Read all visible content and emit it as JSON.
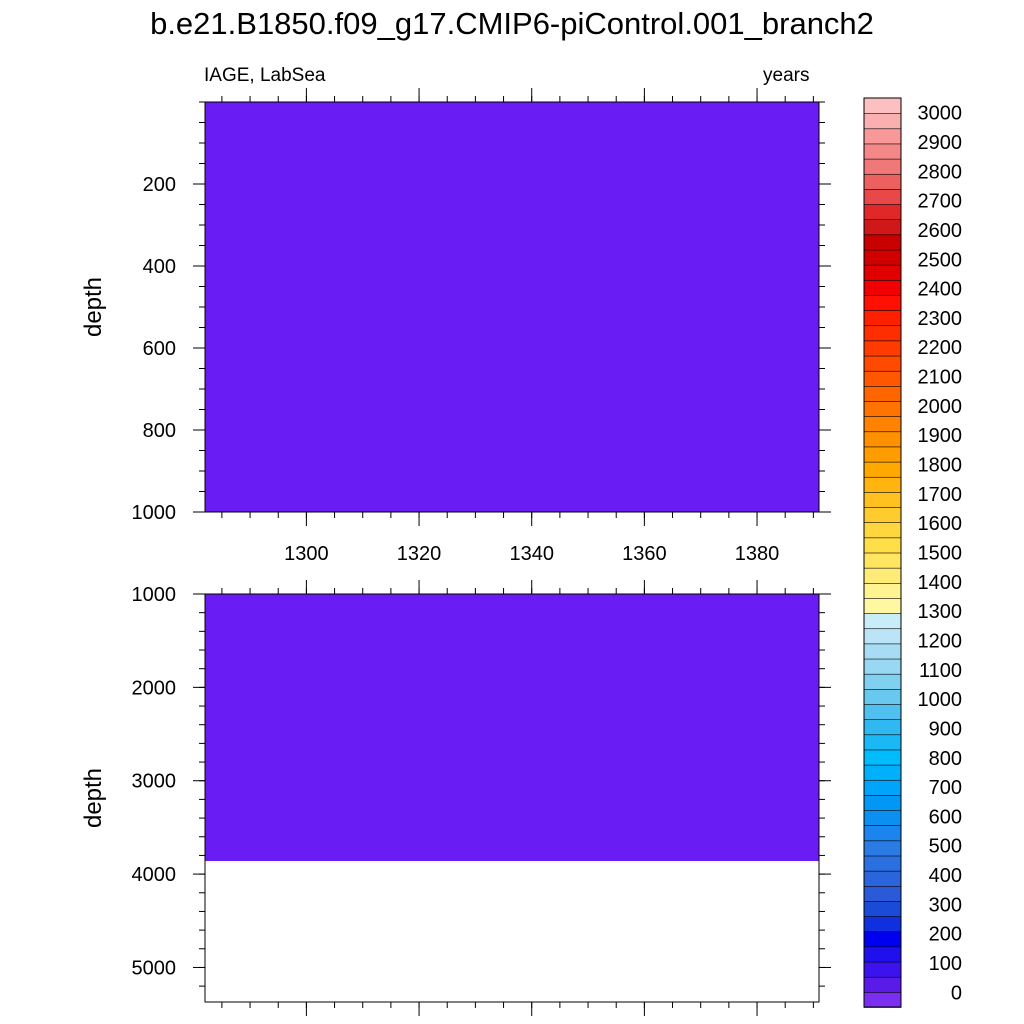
{
  "chart_data": {
    "type": "heatmap",
    "title": "b.e21.B1850.f09_g17.CMIP6-piControl.001_branch2",
    "left_label": "IAGE, LabSea",
    "right_label": "years",
    "xlabel": "",
    "x_ticks": [
      1300,
      1320,
      1340,
      1360,
      1380
    ],
    "xlim": [
      1282,
      1391
    ],
    "fill_color": "#6a1cf4",
    "panels": [
      {
        "name": "upper",
        "ylabel": "depth",
        "ylim": [
          0,
          1000
        ],
        "y_ticks": [
          200,
          400,
          600,
          800,
          1000
        ],
        "y_minor_step": 50,
        "y_reversed": true,
        "field_value_years": 50,
        "field_depth_range": [
          0,
          1000
        ]
      },
      {
        "name": "lower",
        "ylabel": "depth",
        "ylim": [
          1000,
          5370
        ],
        "y_ticks": [
          1000,
          2000,
          3000,
          4000,
          5000
        ],
        "y_minor_step": 200,
        "y_reversed": true,
        "field_value_years": 50,
        "field_depth_range": [
          1000,
          3860
        ]
      }
    ],
    "colorbar": {
      "labels": [
        0,
        100,
        200,
        300,
        400,
        500,
        600,
        700,
        800,
        900,
        1000,
        1100,
        1200,
        1300,
        1400,
        1500,
        1600,
        1700,
        1800,
        1900,
        2000,
        2100,
        2200,
        2300,
        2400,
        2500,
        2600,
        2700,
        2800,
        2900,
        3000
      ],
      "colors": [
        "#7a2ff0",
        "#5a1ae8",
        "#3c12ee",
        "#2010ee",
        "#0000f0",
        "#1030e0",
        "#1a4ad8",
        "#2a5ad8",
        "#2a65dc",
        "#2a70e0",
        "#2a7ce4",
        "#1a85ec",
        "#0a90f0",
        "#0098f4",
        "#00a4f8",
        "#00b0fa",
        "#00bcfc",
        "#1ab8f4",
        "#30b8f0",
        "#50c0f0",
        "#68c8ee",
        "#80d0f0",
        "#98d8f2",
        "#a8dcf4",
        "#bce4f8",
        "#c8ecf8",
        "#fff8a0",
        "#fff290",
        "#ffec78",
        "#ffe560",
        "#ffde48",
        "#ffd640",
        "#ffcc30",
        "#ffc020",
        "#ffb410",
        "#ffa800",
        "#ff9c00",
        "#ff9000",
        "#ff8200",
        "#ff7400",
        "#ff6600",
        "#ff5800",
        "#ff4a00",
        "#ff3c00",
        "#ff2e00",
        "#ff2000",
        "#ff1000",
        "#f00000",
        "#e00000",
        "#d00000",
        "#c80000",
        "#d01818",
        "#e02828",
        "#e84848",
        "#ec6060",
        "#f07878",
        "#f48888",
        "#f89898",
        "#fbb0b0",
        "#fcc0c0"
      ]
    }
  }
}
